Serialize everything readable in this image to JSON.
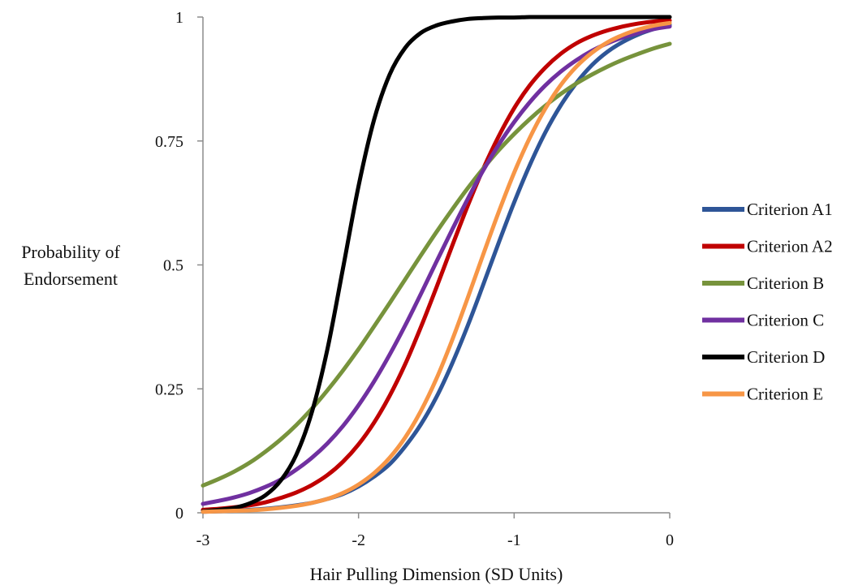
{
  "chart_data": {
    "type": "line",
    "title": "",
    "xlabel": "Hair Pulling Dimension (SD Units)",
    "ylabel_lines": [
      "Probability of",
      "Endorsement"
    ],
    "xlim": [
      -3,
      0
    ],
    "ylim": [
      0,
      1
    ],
    "x_ticks": [
      -3,
      -2,
      -1,
      0
    ],
    "x_tick_labels": [
      "-3",
      "-2",
      "-1",
      "0"
    ],
    "y_ticks": [
      0,
      0.25,
      0.5,
      0.75,
      1
    ],
    "y_tick_labels": [
      "0",
      "0.25",
      "0.5",
      "0.75",
      "1"
    ],
    "grid": false,
    "legend_position": "right",
    "x": [
      -3.0,
      -2.9,
      -2.8,
      -2.7,
      -2.6,
      -2.5,
      -2.4,
      -2.3,
      -2.2,
      -2.1,
      -2.0,
      -1.9,
      -1.8,
      -1.7,
      -1.6,
      -1.5,
      -1.4,
      -1.3,
      -1.2,
      -1.1,
      -1.0,
      -0.9,
      -0.8,
      -0.7,
      -0.6,
      -0.5,
      -0.4,
      -0.3,
      -0.2,
      -0.1,
      0.0
    ],
    "series": [
      {
        "name": "Criterion A1",
        "color": "#2e5597",
        "values": [
          0.002,
          0.003,
          0.004,
          0.006,
          0.008,
          0.011,
          0.015,
          0.02,
          0.028,
          0.038,
          0.053,
          0.073,
          0.098,
          0.134,
          0.178,
          0.233,
          0.3,
          0.376,
          0.459,
          0.544,
          0.626,
          0.701,
          0.767,
          0.822,
          0.867,
          0.903,
          0.93,
          0.95,
          0.965,
          0.976,
          0.984
        ]
      },
      {
        "name": "Criterion A2",
        "color": "#c00000",
        "values": [
          0.006,
          0.008,
          0.011,
          0.015,
          0.021,
          0.03,
          0.041,
          0.056,
          0.076,
          0.103,
          0.138,
          0.182,
          0.236,
          0.3,
          0.374,
          0.454,
          0.537,
          0.618,
          0.693,
          0.759,
          0.816,
          0.862,
          0.898,
          0.926,
          0.947,
          0.962,
          0.973,
          0.981,
          0.987,
          0.991,
          0.993
        ]
      },
      {
        "name": "Criterion B",
        "color": "#77933c",
        "values": [
          0.055,
          0.068,
          0.083,
          0.101,
          0.123,
          0.148,
          0.177,
          0.21,
          0.247,
          0.287,
          0.33,
          0.376,
          0.423,
          0.471,
          0.519,
          0.566,
          0.611,
          0.654,
          0.694,
          0.731,
          0.764,
          0.794,
          0.821,
          0.845,
          0.866,
          0.884,
          0.9,
          0.914,
          0.926,
          0.937,
          0.946
        ]
      },
      {
        "name": "Criterion C",
        "color": "#7030a0",
        "values": [
          0.018,
          0.024,
          0.031,
          0.04,
          0.052,
          0.067,
          0.087,
          0.111,
          0.14,
          0.175,
          0.217,
          0.265,
          0.319,
          0.378,
          0.441,
          0.506,
          0.57,
          0.632,
          0.69,
          0.742,
          0.788,
          0.828,
          0.862,
          0.89,
          0.913,
          0.932,
          0.947,
          0.959,
          0.968,
          0.976,
          0.981
        ]
      },
      {
        "name": "Criterion D",
        "color": "#000000",
        "values": [
          0.003,
          0.006,
          0.01,
          0.019,
          0.035,
          0.065,
          0.117,
          0.203,
          0.33,
          0.493,
          0.659,
          0.793,
          0.884,
          0.938,
          0.968,
          0.983,
          0.991,
          0.996,
          0.998,
          0.999,
          0.999,
          1.0,
          1.0,
          1.0,
          1.0,
          1.0,
          1.0,
          1.0,
          1.0,
          1.0,
          1.0
        ]
      },
      {
        "name": "Criterion E",
        "color": "#f79646",
        "values": [
          0.002,
          0.003,
          0.004,
          0.005,
          0.007,
          0.01,
          0.014,
          0.02,
          0.028,
          0.04,
          0.057,
          0.08,
          0.111,
          0.152,
          0.205,
          0.27,
          0.347,
          0.432,
          0.52,
          0.606,
          0.686,
          0.756,
          0.815,
          0.863,
          0.9,
          0.928,
          0.949,
          0.964,
          0.975,
          0.983,
          0.988
        ]
      }
    ]
  }
}
